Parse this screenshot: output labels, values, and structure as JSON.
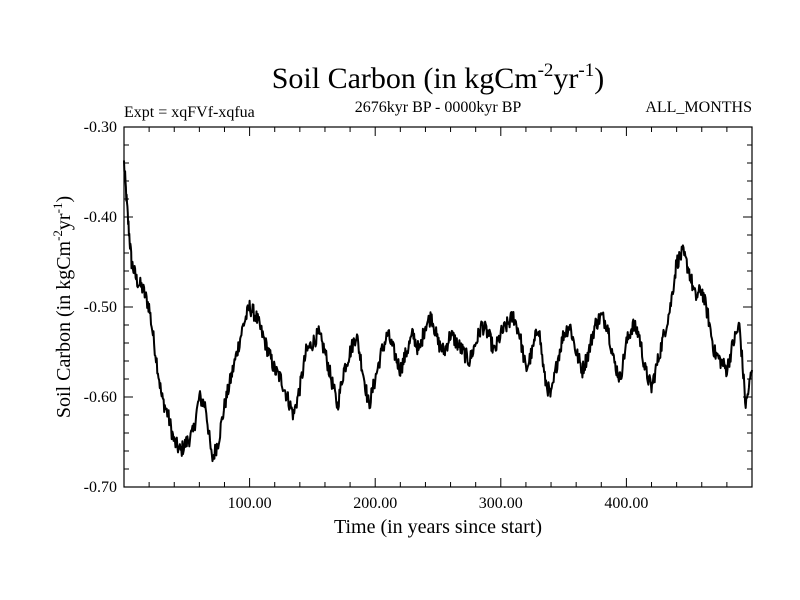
{
  "chart_data": {
    "type": "line",
    "title": "Soil Carbon (in kgCm",
    "title_sup1": "-2",
    "title_mid": "yr",
    "title_sup2": "-1",
    "title_end": ")",
    "subtitle_left": "Expt = xqFVf-xqfua",
    "subtitle_center": "2676kyr BP - 0000kyr BP",
    "subtitle_right": "ALL_MONTHS",
    "xlabel": "Time (in years since start)",
    "ylabel": "Soil Carbon (in kgCm",
    "ylabel_sup1": "-2",
    "ylabel_mid": "yr",
    "ylabel_sup2": "-1",
    "ylabel_end": ")",
    "xlim": [
      0,
      500
    ],
    "ylim": [
      -0.7,
      -0.3
    ],
    "xticks": [
      100,
      200,
      300,
      400
    ],
    "xtick_labels": [
      "100.00",
      "200.00",
      "300.00",
      "400.00"
    ],
    "yticks": [
      -0.7,
      -0.6,
      -0.5,
      -0.4,
      -0.3
    ],
    "ytick_labels": [
      "-0.70",
      "-0.60",
      "-0.50",
      "-0.40",
      "-0.30"
    ],
    "grid": false,
    "series": [
      {
        "name": "soil_carbon",
        "x": [
          0,
          3,
          6,
          10,
          15,
          20,
          25,
          30,
          35,
          40,
          45,
          50,
          55,
          60,
          65,
          70,
          75,
          80,
          85,
          90,
          95,
          100,
          105,
          110,
          115,
          120,
          125,
          130,
          135,
          140,
          145,
          150,
          155,
          160,
          165,
          170,
          175,
          180,
          185,
          190,
          195,
          200,
          205,
          210,
          215,
          220,
          225,
          230,
          235,
          240,
          245,
          250,
          255,
          260,
          265,
          270,
          275,
          280,
          285,
          290,
          295,
          300,
          305,
          310,
          315,
          320,
          325,
          330,
          335,
          340,
          345,
          350,
          355,
          360,
          365,
          370,
          375,
          380,
          385,
          390,
          395,
          400,
          405,
          410,
          415,
          420,
          425,
          430,
          435,
          440,
          445,
          450,
          455,
          460,
          465,
          470,
          475,
          480,
          485,
          490,
          495,
          500
        ],
        "y": [
          -0.34,
          -0.4,
          -0.45,
          -0.47,
          -0.48,
          -0.5,
          -0.55,
          -0.6,
          -0.62,
          -0.65,
          -0.66,
          -0.65,
          -0.64,
          -0.6,
          -0.61,
          -0.67,
          -0.65,
          -0.61,
          -0.58,
          -0.55,
          -0.52,
          -0.5,
          -0.51,
          -0.53,
          -0.55,
          -0.57,
          -0.58,
          -0.6,
          -0.62,
          -0.59,
          -0.55,
          -0.54,
          -0.53,
          -0.55,
          -0.58,
          -0.61,
          -0.57,
          -0.55,
          -0.53,
          -0.57,
          -0.61,
          -0.58,
          -0.55,
          -0.53,
          -0.55,
          -0.57,
          -0.55,
          -0.53,
          -0.55,
          -0.52,
          -0.51,
          -0.54,
          -0.55,
          -0.53,
          -0.54,
          -0.55,
          -0.56,
          -0.54,
          -0.52,
          -0.53,
          -0.55,
          -0.53,
          -0.52,
          -0.51,
          -0.53,
          -0.57,
          -0.55,
          -0.52,
          -0.58,
          -0.6,
          -0.56,
          -0.53,
          -0.52,
          -0.55,
          -0.57,
          -0.55,
          -0.52,
          -0.51,
          -0.52,
          -0.56,
          -0.58,
          -0.54,
          -0.52,
          -0.53,
          -0.57,
          -0.59,
          -0.56,
          -0.53,
          -0.5,
          -0.45,
          -0.44,
          -0.46,
          -0.49,
          -0.48,
          -0.51,
          -0.55,
          -0.56,
          -0.57,
          -0.54,
          -0.52,
          -0.61,
          -0.57
        ]
      }
    ]
  }
}
